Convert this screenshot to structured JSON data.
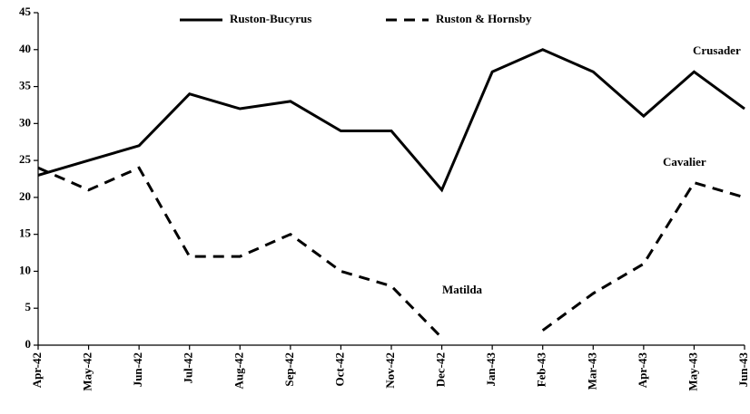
{
  "chart_data": {
    "type": "line",
    "categories": [
      "Apr-42",
      "May-42",
      "Jun-42",
      "Jul-42",
      "Aug-42",
      "Sep-42",
      "Oct-42",
      "Nov-42",
      "Dec-42",
      "Jan-43",
      "Feb-43",
      "Mar-43",
      "Apr-43",
      "May-43",
      "Jun-43"
    ],
    "series": [
      {
        "name": "Ruston-Bucyrus",
        "color": "#000000",
        "dash": "solid",
        "values": [
          23,
          25,
          27,
          34,
          32,
          33,
          29,
          29,
          21,
          37,
          40,
          37,
          31,
          37,
          32
        ]
      },
      {
        "name": "Ruston & Hornsby",
        "color": "#000000",
        "dash": "dashed",
        "values": [
          24,
          21,
          24,
          12,
          12,
          15,
          10,
          8,
          1,
          null,
          2,
          7,
          11,
          22,
          20
        ]
      }
    ],
    "ylim": [
      0,
      45
    ],
    "yticks": [
      0,
      5,
      10,
      15,
      20,
      25,
      30,
      35,
      40,
      45
    ],
    "annotations": [
      "Crusader",
      "Cavalier",
      "Matilda"
    ],
    "legend": "top",
    "grid": false
  }
}
